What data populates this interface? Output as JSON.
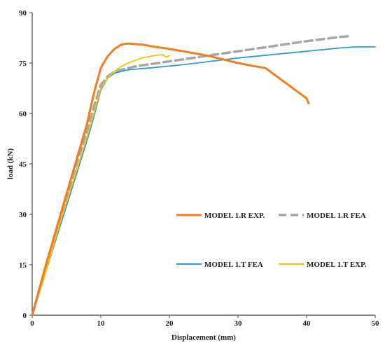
{
  "chart_data": {
    "type": "line",
    "title": "",
    "xlabel": "Displacement (mm)",
    "ylabel": "load (kN)",
    "xlim": [
      0,
      50
    ],
    "ylim": [
      0,
      90
    ],
    "x_ticks": [
      "0",
      "10",
      "20",
      "30",
      "40",
      "50"
    ],
    "y_ticks": [
      "0",
      "15",
      "30",
      "45",
      "60",
      "75",
      "90"
    ],
    "grid": false,
    "legend_placement": "lower-right",
    "series": [
      {
        "name": "MODEL 1.R  EXP.",
        "color": "#f47c20",
        "dash": "solid",
        "points": [
          [
            0,
            0
          ],
          [
            2,
            15
          ],
          [
            4,
            29
          ],
          [
            6,
            43
          ],
          [
            8,
            57
          ],
          [
            9,
            66
          ],
          [
            10,
            73.5
          ],
          [
            11,
            77
          ],
          [
            12,
            79.2
          ],
          [
            13,
            80.5
          ],
          [
            14,
            80.8
          ],
          [
            16,
            80.5
          ],
          [
            18,
            79.8
          ],
          [
            20,
            79.2
          ],
          [
            22,
            78.5
          ],
          [
            24,
            77.8
          ],
          [
            26,
            77
          ],
          [
            28,
            76
          ],
          [
            30,
            75
          ],
          [
            32,
            74.2
          ],
          [
            34,
            73.5
          ],
          [
            35,
            72
          ],
          [
            36,
            70.5
          ],
          [
            37,
            69
          ],
          [
            38,
            67.5
          ],
          [
            39,
            66
          ],
          [
            40,
            64.5
          ],
          [
            40.3,
            63
          ]
        ]
      },
      {
        "name": "MODEL 1.R FEA",
        "color": "#a6a6a6",
        "dash": "dashed",
        "points": [
          [
            0,
            0
          ],
          [
            2,
            14
          ],
          [
            4,
            28
          ],
          [
            6,
            42
          ],
          [
            8,
            55
          ],
          [
            9,
            62
          ],
          [
            10,
            68.5
          ],
          [
            11,
            71
          ],
          [
            12,
            72.5
          ],
          [
            15,
            74
          ],
          [
            20,
            75.5
          ],
          [
            25,
            77
          ],
          [
            30,
            78.5
          ],
          [
            35,
            80
          ],
          [
            40,
            81.5
          ],
          [
            45,
            82.8
          ],
          [
            46.5,
            83
          ]
        ]
      },
      {
        "name": "MODEL 1.T FEA",
        "color": "#2e9bd6",
        "dash": "solid",
        "points": [
          [
            0,
            0
          ],
          [
            2,
            13
          ],
          [
            4,
            26
          ],
          [
            6,
            39
          ],
          [
            8,
            52
          ],
          [
            9,
            59
          ],
          [
            10,
            67
          ],
          [
            11,
            70.5
          ],
          [
            12,
            72
          ],
          [
            14,
            73
          ],
          [
            18,
            73.7
          ],
          [
            22,
            74.5
          ],
          [
            26,
            75.5
          ],
          [
            30,
            76.5
          ],
          [
            35,
            77.5
          ],
          [
            40,
            78.5
          ],
          [
            45,
            79.5
          ],
          [
            47,
            79.8
          ],
          [
            50,
            79.8
          ]
        ]
      },
      {
        "name": "MODEL 1.T EXP.",
        "color": "#f5c400",
        "dash": "solid",
        "points": [
          [
            0,
            0
          ],
          [
            2,
            13
          ],
          [
            4,
            27
          ],
          [
            6,
            40
          ],
          [
            8,
            53
          ],
          [
            9,
            60
          ],
          [
            10,
            67.5
          ],
          [
            11,
            70.5
          ],
          [
            12,
            72.5
          ],
          [
            13,
            74
          ],
          [
            14,
            75
          ],
          [
            16,
            76.5
          ],
          [
            18,
            77.3
          ],
          [
            19,
            77.5
          ],
          [
            19.5,
            76.8
          ],
          [
            20,
            77.2
          ]
        ]
      }
    ]
  }
}
